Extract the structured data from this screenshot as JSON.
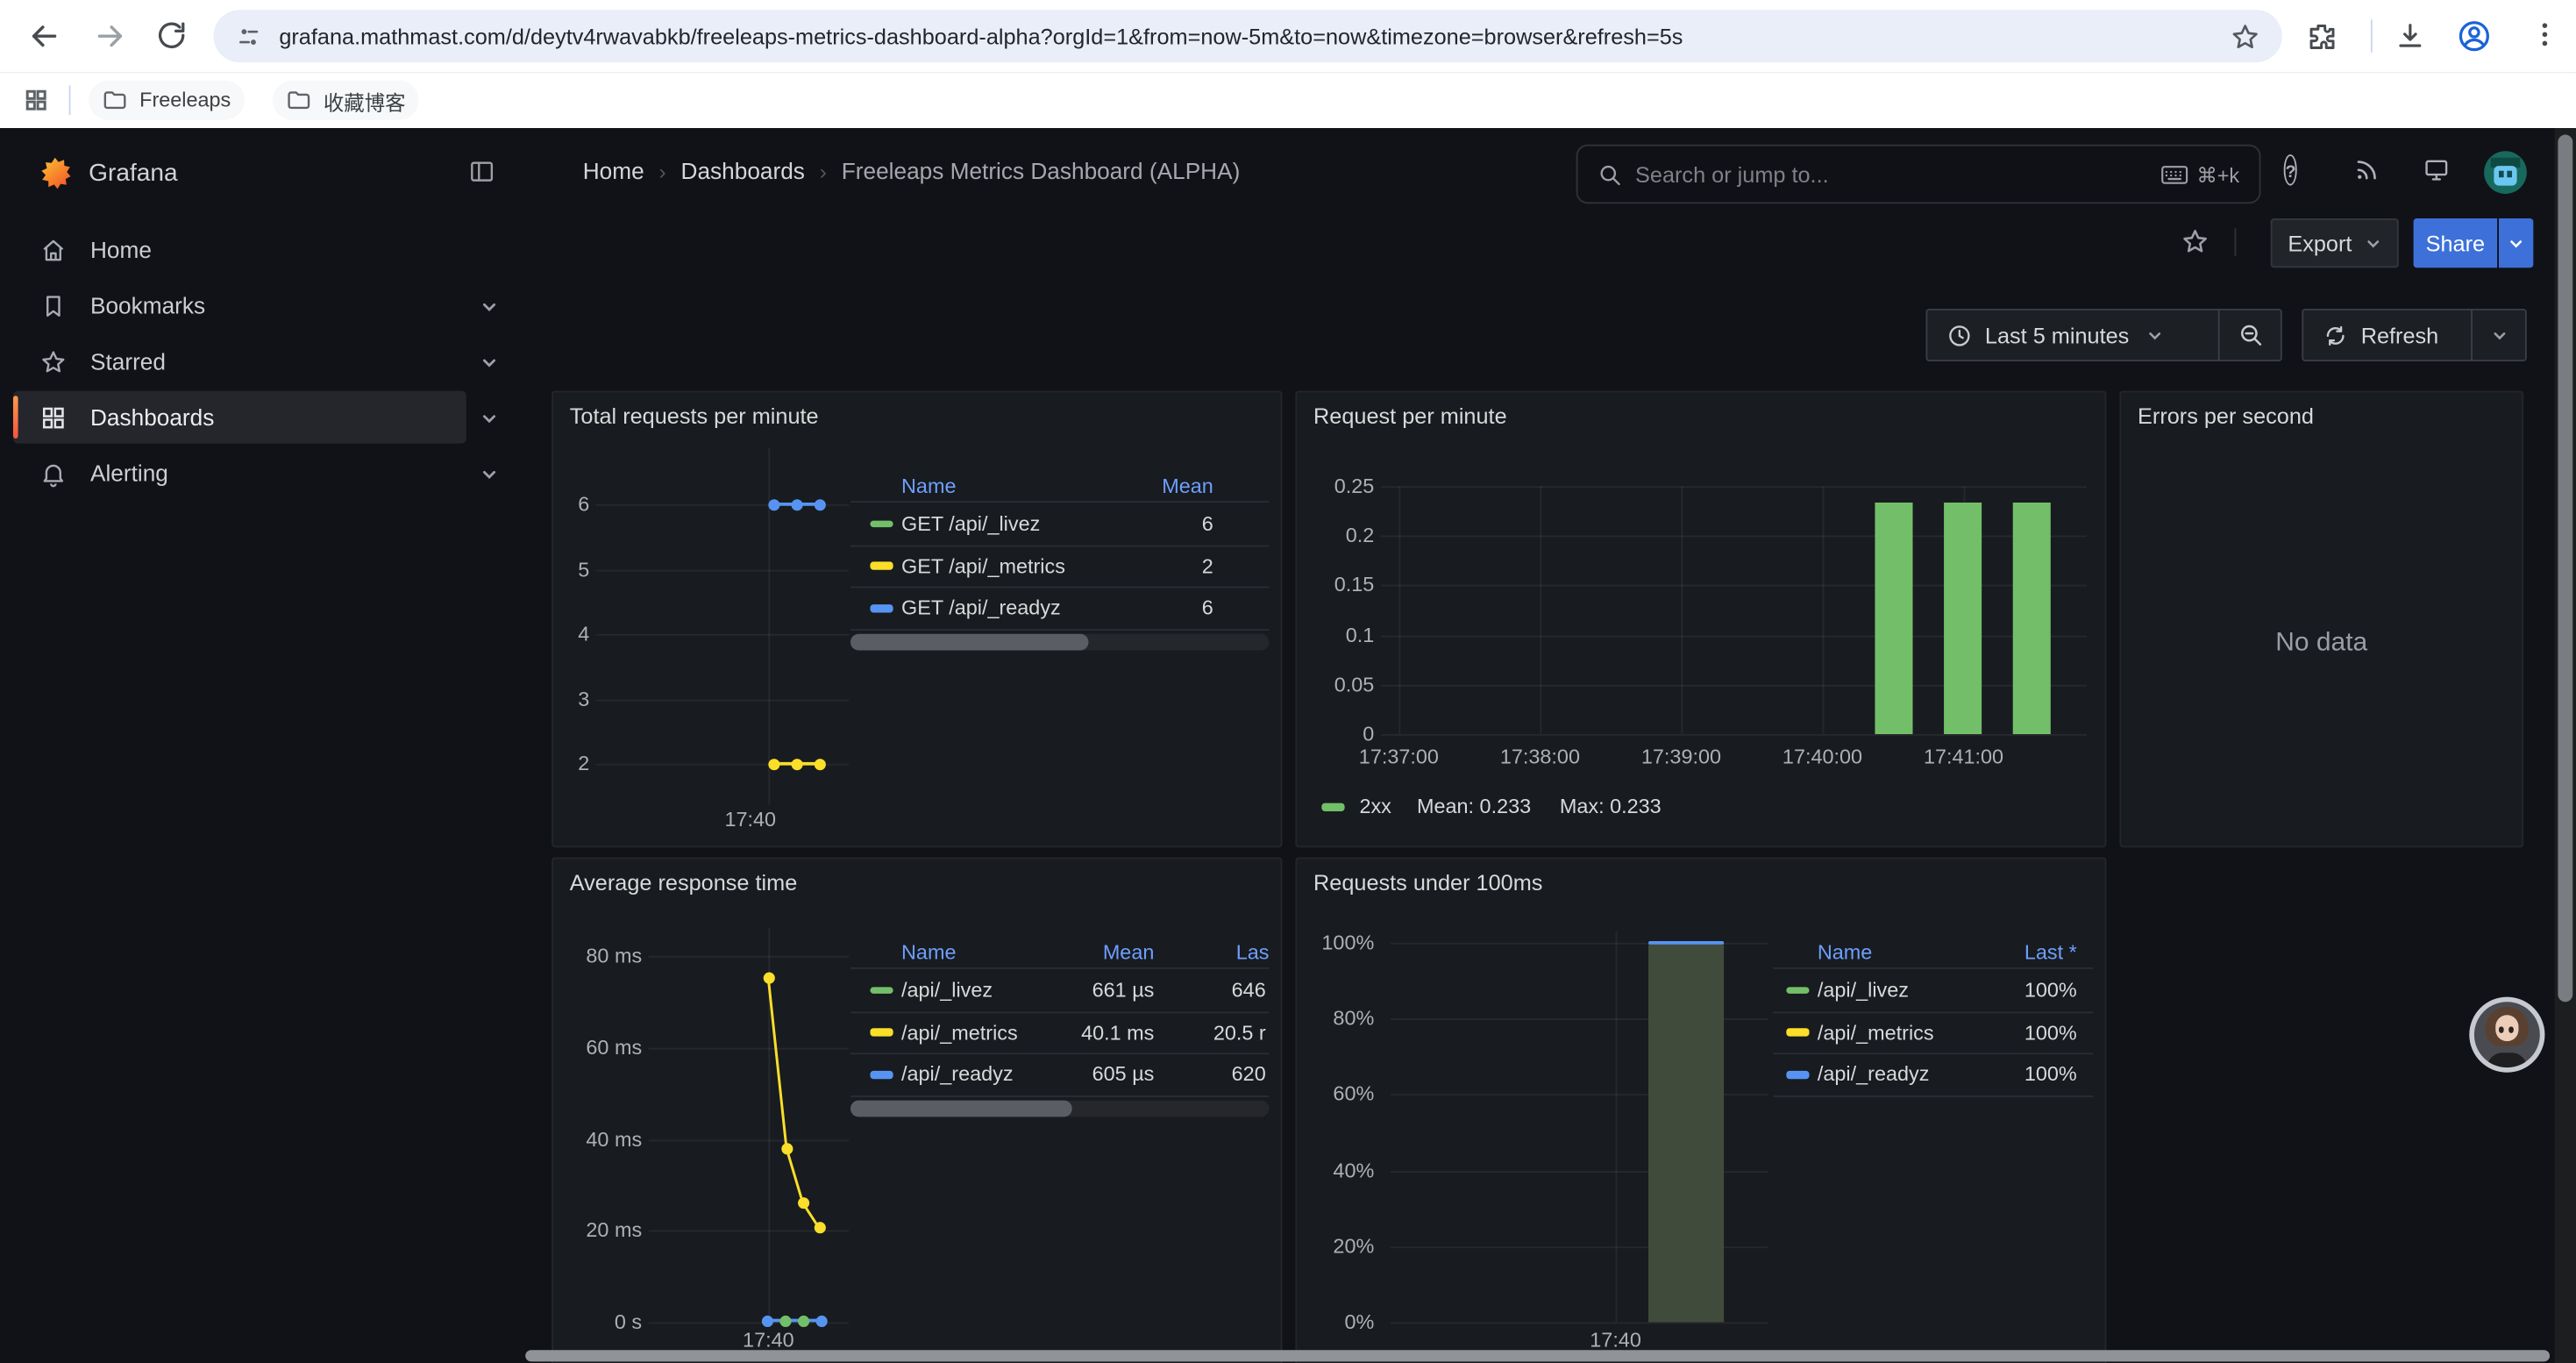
{
  "browser": {
    "url": "grafana.mathmast.com/d/deytv4rwavabkb/freeleaps-metrics-dashboard-alpha?orgId=1&from=now-5m&to=now&timezone=browser&refresh=5s",
    "bookmarks_bar": {
      "folders": [
        "Freeleaps",
        "收藏博客"
      ]
    }
  },
  "grafana": {
    "brand": "Grafana",
    "breadcrumb": {
      "items": [
        "Home",
        "Dashboards",
        "Freeleaps Metrics Dashboard (ALPHA)"
      ],
      "separator": "›"
    },
    "search": {
      "placeholder": "Search or jump to...",
      "shortcut": "⌘+k"
    },
    "sidebar": [
      {
        "label": "Home"
      },
      {
        "label": "Bookmarks"
      },
      {
        "label": "Starred"
      },
      {
        "label": "Dashboards",
        "active": true
      },
      {
        "label": "Alerting"
      }
    ],
    "toolbar": {
      "export_label": "Export",
      "share_label": "Share"
    },
    "timebar": {
      "range": "Last 5 minutes",
      "refresh_label": "Refresh"
    }
  },
  "colors": {
    "green": "#73bf69",
    "yellow": "#fade2a",
    "blue": "#5794f2",
    "accent_blue": "#3d71d9",
    "link_blue": "#6e9fff",
    "panel_bg": "#181b1f",
    "page_bg": "#111217"
  },
  "panels": {
    "total_requests": {
      "title": "Total requests per minute",
      "type": "line",
      "y_ticks": [
        "6",
        "5",
        "4",
        "3",
        "2"
      ],
      "x_ticks": [
        "17:40"
      ],
      "legend_columns": [
        "Name",
        "Mean"
      ],
      "series": [
        {
          "name": "GET /api/_livez",
          "color": "#73bf69",
          "mean": "6"
        },
        {
          "name": "GET /api/_metrics",
          "color": "#fade2a",
          "mean": "2"
        },
        {
          "name": "GET /api/_readyz",
          "color": "#5794f2",
          "mean": "6"
        }
      ],
      "visible_lines": [
        {
          "color": "#5794f2",
          "value": 6
        },
        {
          "color": "#fade2a",
          "value": 2
        }
      ]
    },
    "request_per_minute": {
      "title": "Request per minute",
      "type": "bar",
      "y_ticks": [
        "0.25",
        "0.2",
        "0.15",
        "0.1",
        "0.05",
        "0"
      ],
      "ylim": [
        0,
        0.25
      ],
      "x_ticks": [
        "17:37:00",
        "17:38:00",
        "17:39:00",
        "17:40:00",
        "17:41:00"
      ],
      "bars": [
        0.233,
        0.233,
        0.233
      ],
      "bar_color": "#73bf69",
      "legend": {
        "series": "2xx",
        "mean_label": "Mean: 0.233",
        "max_label": "Max: 0.233"
      }
    },
    "errors_per_second": {
      "title": "Errors per second",
      "message": "No data"
    },
    "avg_response_time": {
      "title": "Average response time",
      "type": "line",
      "y_ticks": [
        "80 ms",
        "60 ms",
        "40 ms",
        "20 ms",
        "0 s"
      ],
      "ylim_ms": [
        0,
        80
      ],
      "x_ticks": [
        "17:40"
      ],
      "legend_columns": [
        "Name",
        "Mean",
        "Las"
      ],
      "rows": [
        {
          "name": "/api/_livez",
          "color": "#73bf69",
          "mean": "661 µs",
          "last": "646"
        },
        {
          "name": "/api/_metrics",
          "color": "#fade2a",
          "mean": "40.1 ms",
          "last": "20.5 r"
        },
        {
          "name": "/api/_readyz",
          "color": "#5794f2",
          "mean": "605 µs",
          "last": "620"
        }
      ],
      "line_series_ms": {
        "name": "/api/_metrics",
        "color": "#fade2a",
        "points": [
          75,
          38,
          26,
          20.5
        ]
      },
      "baseline_series": {
        "value_ms": 0.6,
        "colors": [
          "#5794f2",
          "#73bf69",
          "#73bf69",
          "#5794f2"
        ]
      }
    },
    "requests_under_100ms": {
      "title": "Requests under 100ms",
      "type": "bar",
      "y_ticks": [
        "100%",
        "80%",
        "60%",
        "40%",
        "20%",
        "0%"
      ],
      "ylim_pct": [
        0,
        100
      ],
      "x_ticks": [
        "17:40"
      ],
      "bar_value_pct": 100,
      "bar_fill": "#414b3b",
      "bar_top_color": "#5794f2",
      "legend_columns": [
        "Name",
        "Last *"
      ],
      "rows": [
        {
          "name": "/api/_livez",
          "color": "#73bf69",
          "last": "100%"
        },
        {
          "name": "/api/_metrics",
          "color": "#fade2a",
          "last": "100%"
        },
        {
          "name": "/api/_readyz",
          "color": "#5794f2",
          "last": "100%"
        }
      ]
    }
  }
}
